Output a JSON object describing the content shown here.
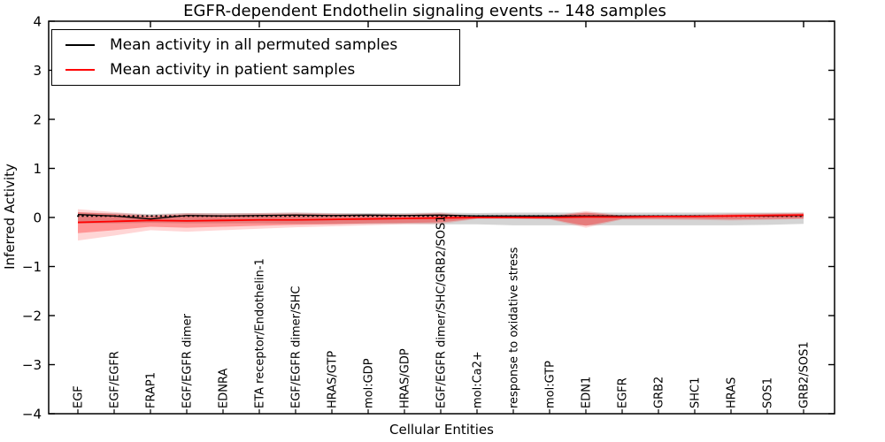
{
  "chart_data": {
    "type": "line",
    "title": "EGFR-dependent Endothelin signaling events -- 148 samples",
    "xlabel": "Cellular Entities",
    "ylabel": "Inferred Activity",
    "ylim": [
      -4,
      4
    ],
    "yticks": [
      -4,
      -3,
      -2,
      -1,
      0,
      1,
      2,
      3,
      4
    ],
    "grid": false,
    "legend_position": "upper left",
    "legend": [
      {
        "label": "Mean activity in all permuted samples",
        "color": "#000000"
      },
      {
        "label": "Mean activity in patient samples",
        "color": "#ff0000"
      }
    ],
    "categories": [
      "EGF",
      "EGF/EGFR",
      "FRAP1",
      "EGF/EGFR dimer",
      "EDNRA",
      "ETA receptor/Endothelin-1",
      "EGF/EGFR dimer/SHC",
      "HRAS/GTP",
      "mol:GDP",
      "HRAS/GDP",
      "EGF/EGFR dimer/SHC/GRB2/SOS1",
      "mol:Ca2+",
      "response to oxidative stress",
      "mol:GTP",
      "EDN1",
      "EGFR",
      "GRB2",
      "SHC1",
      "HRAS",
      "SOS1",
      "GRB2/SOS1"
    ],
    "series": [
      {
        "name": "permuted-mean-dotted-reference",
        "color": "#000000",
        "style": "dotted",
        "width": 2,
        "values": [
          0.03,
          0.03,
          0.03,
          0.03,
          0.03,
          0.03,
          0.03,
          0.03,
          0.03,
          0.03,
          0.03,
          0.03,
          0.03,
          0.03,
          0.03,
          0.03,
          0.03,
          0.03,
          0.03,
          0.03,
          0.03
        ]
      },
      {
        "name": "Mean activity in all permuted samples",
        "color": "#000000",
        "style": "solid",
        "width": 1.3,
        "values": [
          0.06,
          0.03,
          -0.03,
          0.04,
          0.03,
          0.04,
          0.05,
          0.04,
          0.05,
          0.04,
          0.05,
          0.03,
          0.03,
          0.03,
          0.03,
          0.03,
          0.03,
          0.03,
          0.03,
          0.03,
          0.04
        ]
      },
      {
        "name": "Mean activity in patient samples",
        "color": "#ff0000",
        "style": "solid",
        "width": 1.8,
        "values": [
          -0.1,
          -0.08,
          -0.06,
          -0.07,
          -0.06,
          -0.05,
          -0.05,
          -0.04,
          -0.03,
          -0.02,
          -0.01,
          0.0,
          0.0,
          0.0,
          0.01,
          0.01,
          0.02,
          0.02,
          0.03,
          0.04,
          0.05
        ]
      }
    ],
    "bands": [
      {
        "name": "permuted-std-band",
        "color": "#999999",
        "opacity": 0.42,
        "top": [
          0.1,
          0.09,
          0.07,
          0.09,
          0.09,
          0.09,
          0.1,
          0.09,
          0.09,
          0.09,
          0.1,
          0.09,
          0.1,
          0.1,
          0.1,
          0.1,
          0.1,
          0.1,
          0.1,
          0.1,
          0.1
        ],
        "bottom": [
          -0.12,
          -0.12,
          -0.11,
          -0.12,
          -0.12,
          -0.12,
          -0.13,
          -0.13,
          -0.13,
          -0.13,
          -0.14,
          -0.14,
          -0.16,
          -0.16,
          -0.16,
          -0.16,
          -0.16,
          -0.16,
          -0.16,
          -0.15,
          -0.13
        ]
      },
      {
        "name": "patient-outer-band",
        "color": "#ff0000",
        "opacity": 0.16,
        "top": [
          0.17,
          0.11,
          0.05,
          0.09,
          0.08,
          0.09,
          0.1,
          0.08,
          0.07,
          0.07,
          0.1,
          0.02,
          0.02,
          0.03,
          0.13,
          0.04,
          0.04,
          0.06,
          0.08,
          0.09,
          0.1
        ],
        "bottom": [
          -0.47,
          -0.37,
          -0.26,
          -0.29,
          -0.26,
          -0.23,
          -0.2,
          -0.18,
          -0.16,
          -0.14,
          -0.13,
          -0.03,
          -0.03,
          -0.04,
          -0.21,
          -0.04,
          -0.04,
          -0.05,
          -0.06,
          -0.05,
          -0.03
        ]
      },
      {
        "name": "patient-inner-band",
        "color": "#ff0000",
        "opacity": 0.3,
        "top": [
          0.11,
          0.07,
          0.03,
          0.06,
          0.05,
          0.06,
          0.07,
          0.06,
          0.05,
          0.05,
          0.07,
          0.01,
          0.01,
          0.02,
          0.1,
          0.03,
          0.03,
          0.04,
          0.06,
          0.07,
          0.08
        ],
        "bottom": [
          -0.32,
          -0.26,
          -0.19,
          -0.21,
          -0.19,
          -0.17,
          -0.15,
          -0.14,
          -0.12,
          -0.11,
          -0.1,
          -0.02,
          -0.02,
          -0.03,
          -0.17,
          -0.03,
          -0.03,
          -0.03,
          -0.04,
          -0.03,
          -0.02
        ]
      }
    ]
  }
}
